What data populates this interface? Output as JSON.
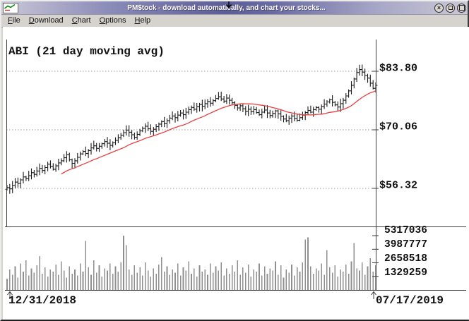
{
  "window": {
    "title": "PM$tock - download automatically, and chart your stocks...",
    "close_glyph": "×"
  },
  "menu": {
    "items": [
      "File",
      "Download",
      "Chart",
      "Options",
      "Help"
    ]
  },
  "chart": {
    "title": "ABI (21 day moving avg)",
    "price_labels": [
      "$83.80",
      "$70.06",
      "$56.32"
    ],
    "volume_labels": [
      "5317036",
      "3987777",
      "2658518",
      "1329259"
    ],
    "date_start": "12/31/2018",
    "date_end": "07/17/2019",
    "colors": {
      "ma_line": "#e84040",
      "price_bars": "#1a1a1a",
      "volume_bars": "#8f8f8f",
      "grid": "#9a9a9a",
      "axis": "#3c3c3c"
    }
  },
  "chart_data": {
    "type": "ohlc+volume",
    "symbol": "ABI",
    "overlay": "21-day simple moving average (red line)",
    "x_start": "12/31/2018",
    "x_end": "07/17/2019",
    "price_gridlines": [
      83.8,
      70.06,
      56.32
    ],
    "volume_ticks": [
      5317036,
      3987777,
      2658518,
      1329259
    ],
    "closes": [
      56.5,
      56.2,
      57.0,
      57.8,
      57.5,
      58.3,
      59.0,
      58.6,
      59.3,
      60.0,
      59.6,
      60.4,
      61.0,
      60.5,
      61.2,
      62.0,
      61.5,
      60.8,
      61.6,
      62.3,
      62.8,
      63.5,
      64.2,
      63.0,
      62.2,
      62.8,
      63.6,
      64.4,
      65.0,
      64.5,
      65.2,
      65.8,
      66.3,
      65.7,
      66.2,
      66.8,
      67.3,
      66.9,
      66.4,
      67.0,
      67.6,
      68.2,
      68.8,
      69.4,
      70.0,
      69.5,
      68.9,
      68.3,
      69.0,
      69.8,
      70.4,
      70.9,
      70.3,
      69.7,
      70.2,
      70.8,
      71.4,
      72.0,
      71.5,
      72.2,
      72.8,
      73.3,
      72.9,
      73.5,
      74.0,
      73.6,
      74.2,
      74.8,
      75.3,
      74.9,
      75.5,
      76.0,
      75.6,
      76.2,
      76.7,
      76.3,
      76.9,
      77.4,
      77.8,
      77.3,
      76.8,
      77.5,
      77.0,
      76.4,
      75.8,
      75.2,
      75.7,
      75.0,
      74.4,
      74.9,
      74.3,
      74.8,
      74.1,
      73.6,
      74.2,
      74.7,
      74.0,
      73.4,
      73.9,
      74.5,
      73.8,
      73.2,
      72.6,
      72.2,
      72.8,
      73.3,
      72.7,
      72.3,
      72.9,
      73.5,
      74.1,
      74.6,
      74.2,
      74.8,
      75.3,
      74.9,
      75.5,
      76.1,
      76.6,
      77.1,
      76.5,
      75.9,
      75.4,
      76.2,
      77.0,
      78.0,
      79.2,
      80.5,
      82.0,
      83.5,
      84.2,
      83.6,
      82.8,
      82.2,
      81.0,
      79.8,
      80.5
    ],
    "volumes": [
      1100000,
      2000000,
      1500000,
      2300000,
      1200000,
      2600000,
      1800000,
      2900000,
      1400000,
      2100000,
      1700000,
      2400000,
      3300000,
      1600000,
      2200000,
      1300000,
      2000000,
      1800000,
      2500000,
      1500000,
      2800000,
      1900000,
      1200000,
      2300000,
      1600000,
      2000000,
      1400000,
      2600000,
      1800000,
      4800000,
      2200000,
      1500000,
      2900000,
      1700000,
      2400000,
      1300000,
      2100000,
      1900000,
      2600000,
      1600000,
      2300000,
      1800000,
      2700000,
      5317036,
      4400000,
      2000000,
      1500000,
      2400000,
      1700000,
      2200000,
      1400000,
      2700000,
      1900000,
      1300000,
      2100000,
      1600000,
      2500000,
      3200000,
      1800000,
      2300000,
      1500000,
      2000000,
      1700000,
      2600000,
      1400000,
      2200000,
      1900000,
      2800000,
      1600000,
      2100000,
      1300000,
      2400000,
      1800000,
      2000000,
      1500000,
      2600000,
      1700000,
      2300000,
      1900000,
      2700000,
      1400000,
      2100000,
      1600000,
      2400000,
      1800000,
      2900000,
      1500000,
      2200000,
      1700000,
      2500000,
      1300000,
      2000000,
      1800000,
      2600000,
      1400000,
      2300000,
      1600000,
      2100000,
      1900000,
      2800000,
      1500000,
      2400000,
      1200000,
      2000000,
      1700000,
      2500000,
      1400000,
      2200000,
      1800000,
      2700000,
      4950000,
      5150000,
      2300000,
      1600000,
      2100000,
      1900000,
      2600000,
      1500000,
      3900000,
      2200000,
      1700000,
      2400000,
      1300000,
      2000000,
      1800000,
      2500000,
      1600000,
      2800000,
      4600000,
      2100000,
      1900000,
      2700000,
      1500000,
      2300000,
      3100000,
      1800000,
      2400000
    ]
  }
}
